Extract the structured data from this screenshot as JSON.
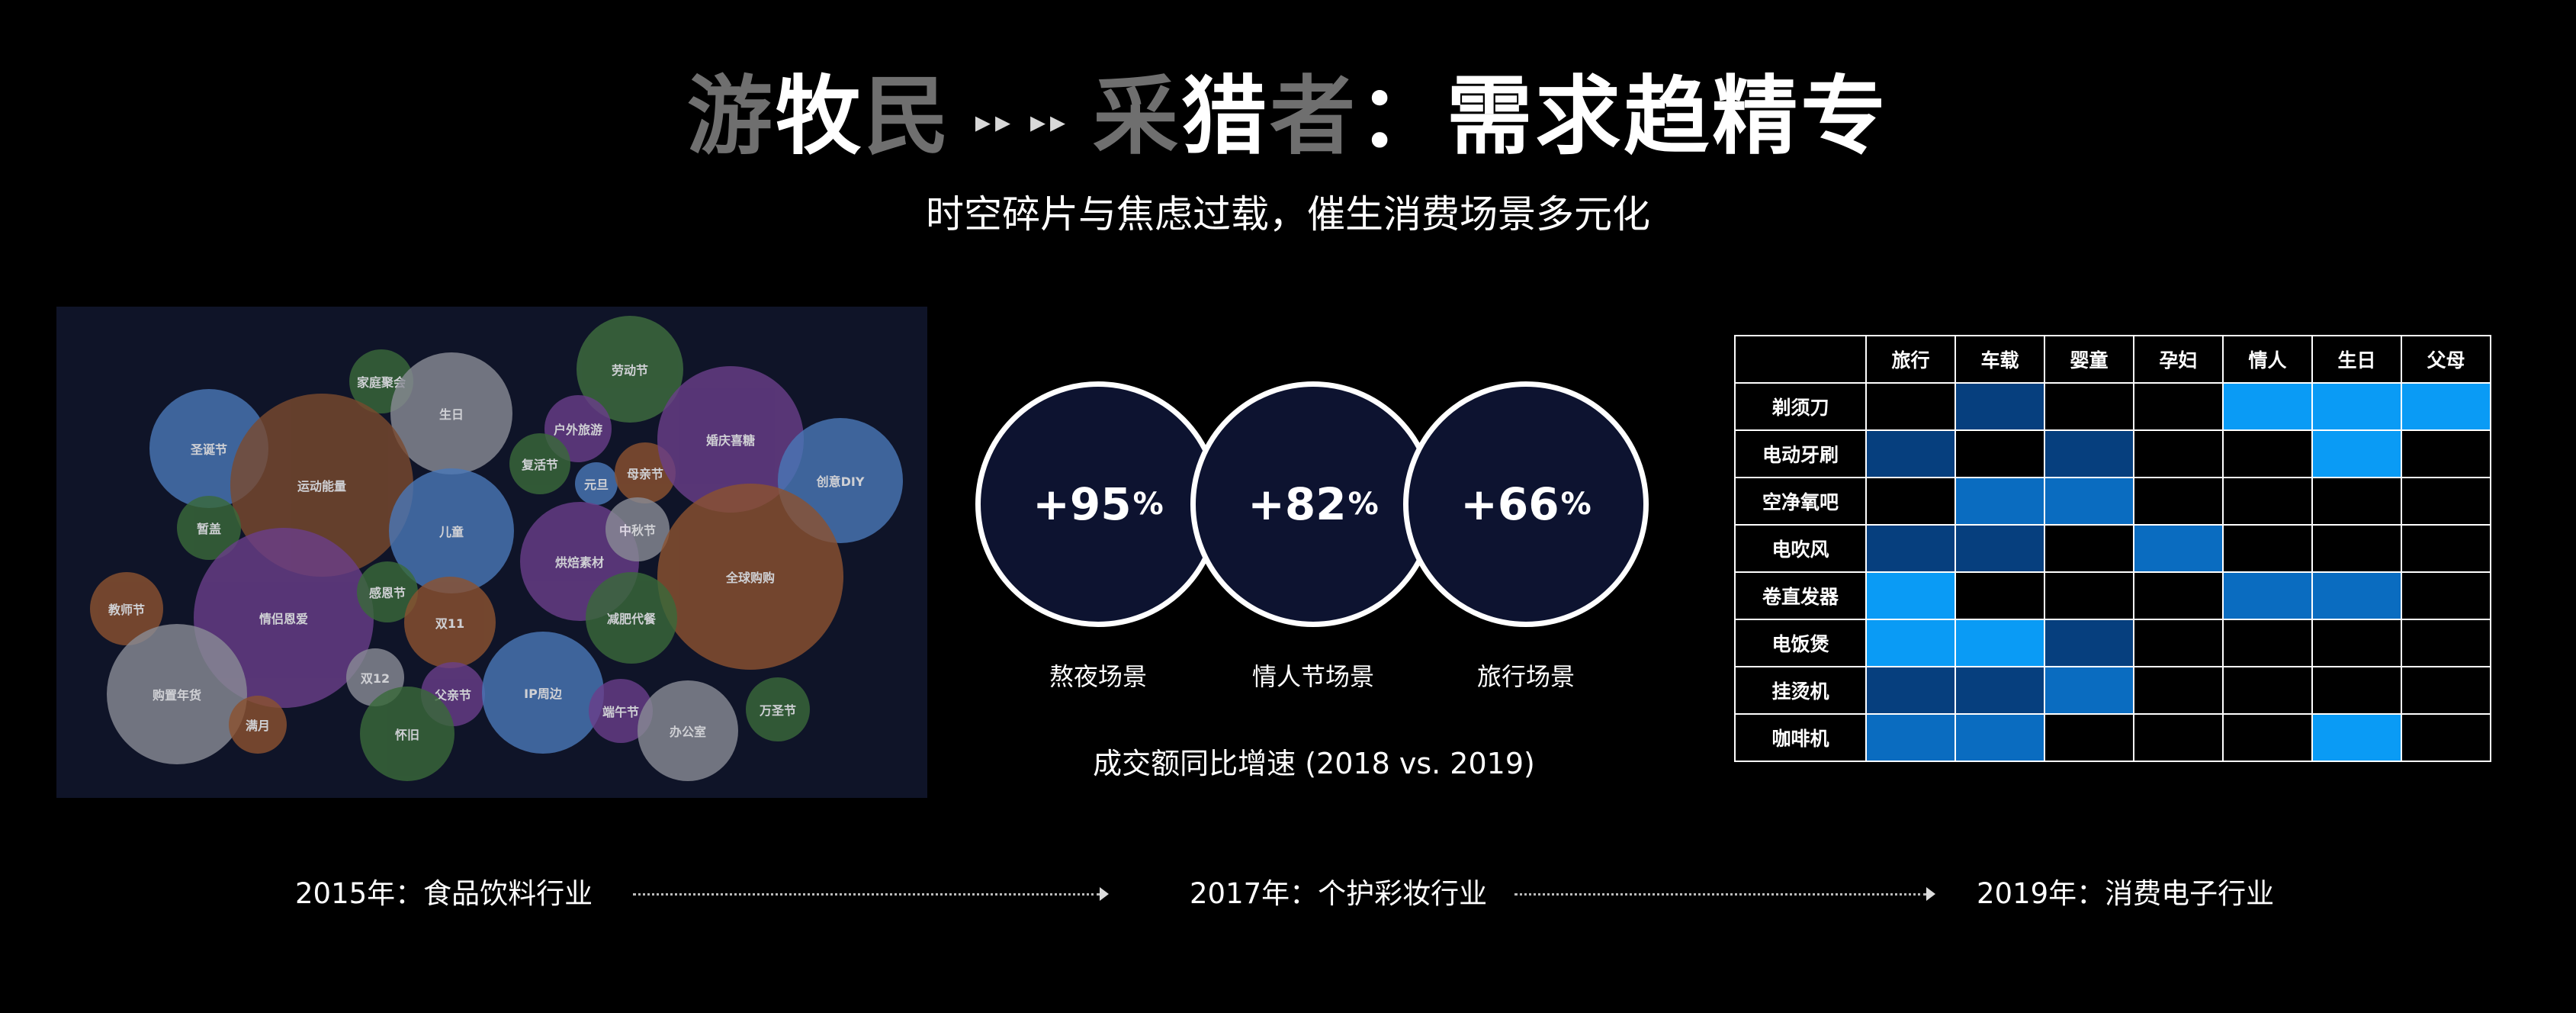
{
  "title": {
    "a1": "游",
    "a2": "牧",
    "a3": "民",
    "arrows": "▸▸ ▸▸",
    "b1": "采",
    "b2": "猎",
    "b3": "者",
    "rest": "：需求趋精专"
  },
  "subtitle": "时空碎片与焦虑过载，催生消费场景多元化",
  "bubbles": [
    {
      "label": "圣诞节",
      "color": "#4a78b8"
    },
    {
      "label": "家庭聚会",
      "color": "#3a6a3a"
    },
    {
      "label": "生日",
      "color": "#8a8c96"
    },
    {
      "label": "劳动节",
      "color": "#3f6e3e"
    },
    {
      "label": "运动能量",
      "color": "#7a4a2e"
    },
    {
      "label": "户外旅游",
      "color": "#6a3e8a"
    },
    {
      "label": "复活节",
      "color": "#3a6a3a"
    },
    {
      "label": "元旦",
      "color": "#4a78b8"
    },
    {
      "label": "母亲节",
      "color": "#8c5230"
    },
    {
      "label": "婚庆喜糖",
      "color": "#6a3e8a"
    },
    {
      "label": "创意DIY",
      "color": "#4a78b8"
    },
    {
      "label": "暂盖",
      "color": "#3a6a3a"
    },
    {
      "label": "儿童",
      "color": "#4a78b8"
    },
    {
      "label": "烘焙素材",
      "color": "#6a3e8a"
    },
    {
      "label": "中秋节",
      "color": "#8a8c96"
    },
    {
      "label": "全球购购",
      "color": "#8c5230"
    },
    {
      "label": "教师节",
      "color": "#8c5230"
    },
    {
      "label": "情侣恩爱",
      "color": "#6a3e8a"
    },
    {
      "label": "感恩节",
      "color": "#3a6a3a"
    },
    {
      "label": "双11",
      "color": "#8c5230"
    },
    {
      "label": "减肥代餐",
      "color": "#3a6a3a"
    },
    {
      "label": "购置年货",
      "color": "#8a8c96"
    },
    {
      "label": "双12",
      "color": "#8a8c96"
    },
    {
      "label": "父亲节",
      "color": "#6a3e8a"
    },
    {
      "label": "IP周边",
      "color": "#4a78b8"
    },
    {
      "label": "端午节",
      "color": "#6a3e8a"
    },
    {
      "label": "万圣节",
      "color": "#3a6a3a"
    },
    {
      "label": "满月",
      "color": "#8c5230"
    },
    {
      "label": "怀旧",
      "color": "#3a6a3a"
    },
    {
      "label": "办公室",
      "color": "#8a8c96"
    }
  ],
  "growth": {
    "items": [
      {
        "value": "+95",
        "unit": "%",
        "label": "熬夜场景"
      },
      {
        "value": "+82",
        "unit": "%",
        "label": "情人节场景"
      },
      {
        "value": "+66",
        "unit": "%",
        "label": "旅行场景"
      }
    ],
    "caption": "成交额同比增速 (2018 vs. 2019)"
  },
  "matrix": {
    "columns": [
      "旅行",
      "车载",
      "婴童",
      "孕妇",
      "情人",
      "生日",
      "父母"
    ],
    "rows": [
      {
        "label": "剃须刀",
        "cells": [
          0,
          1,
          0,
          0,
          3,
          3,
          3
        ]
      },
      {
        "label": "电动牙刷",
        "cells": [
          1,
          0,
          1,
          0,
          0,
          3,
          0
        ]
      },
      {
        "label": "空净氧吧",
        "cells": [
          0,
          2,
          2,
          0,
          0,
          0,
          0
        ]
      },
      {
        "label": "电吹风",
        "cells": [
          1,
          1,
          0,
          2,
          0,
          0,
          0
        ]
      },
      {
        "label": "卷直发器",
        "cells": [
          3,
          0,
          0,
          0,
          2,
          2,
          0
        ]
      },
      {
        "label": "电饭煲",
        "cells": [
          3,
          3,
          1,
          0,
          0,
          0,
          0
        ]
      },
      {
        "label": "挂烫机",
        "cells": [
          1,
          1,
          2,
          0,
          0,
          0,
          0
        ]
      },
      {
        "label": "咖啡机",
        "cells": [
          2,
          2,
          0,
          0,
          0,
          3,
          0
        ]
      }
    ],
    "palette": [
      "#000000",
      "#063f7e",
      "#0a6cc0",
      "#0a9bf5"
    ]
  },
  "timeline": [
    "2015年：食品饮料行业",
    "2017年：个护彩妆行业",
    "2019年：消费电子行业"
  ]
}
